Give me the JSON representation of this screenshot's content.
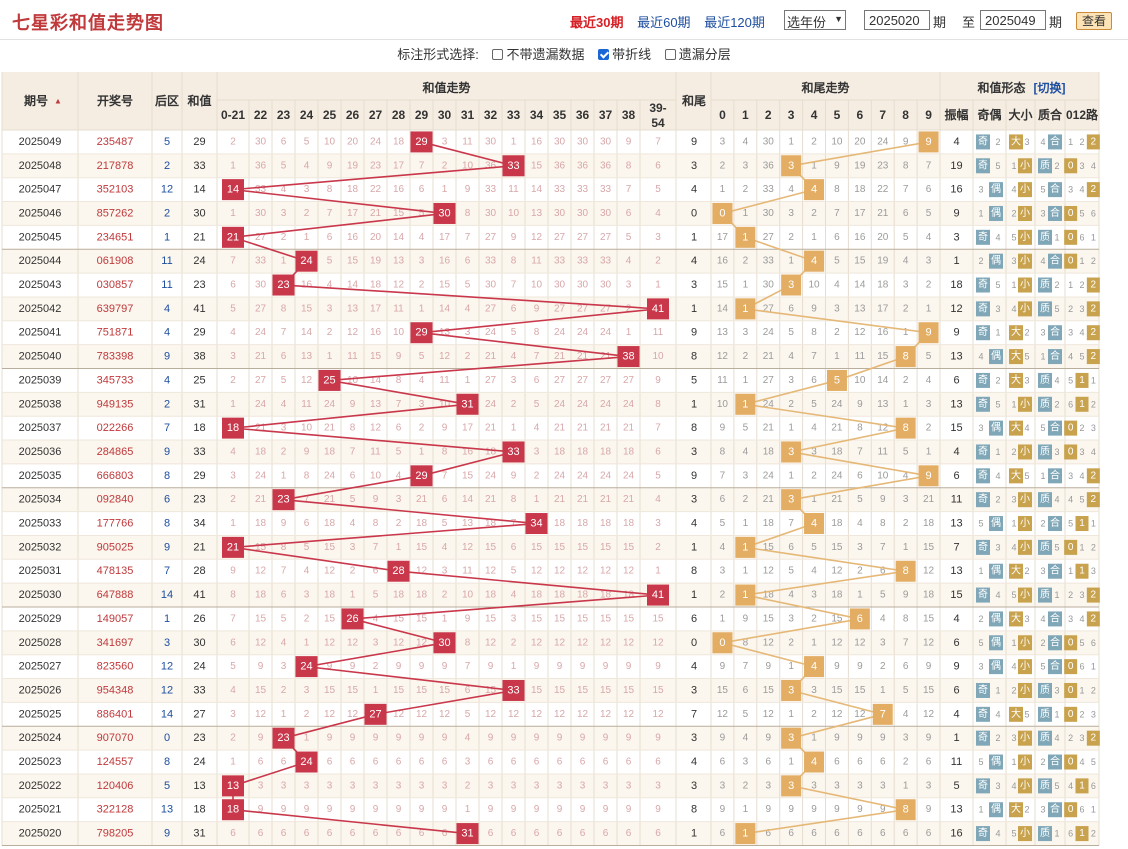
{
  "header": {
    "title": "七星彩和值走势图",
    "periods": [
      "最近30期",
      "最近60期",
      "最近120期"
    ],
    "active_period": 0,
    "year_select": "选年份",
    "from_value": "2025020",
    "from_label": "期",
    "to_label": "至",
    "to_value": "2025049",
    "to_suffix": "期",
    "query_button": "查看"
  },
  "options": {
    "label": "标注形式选择:",
    "items": [
      {
        "label": "不带遗漏数据",
        "checked": false
      },
      {
        "label": "带折线",
        "checked": true
      },
      {
        "label": "遗漏分层",
        "checked": false
      }
    ]
  },
  "table": {
    "headers": {
      "issue": "期号",
      "numbers": "开奖号",
      "back": "后区",
      "sum": "和值",
      "sum_trend": "和值走势",
      "sum_tail": "和尾",
      "tail_trend": "和尾走势",
      "form": "和值形态",
      "switch": "[切换]"
    },
    "sum_columns": [
      "0-21",
      "22",
      "23",
      "24",
      "25",
      "26",
      "27",
      "28",
      "29",
      "30",
      "31",
      "32",
      "33",
      "34",
      "35",
      "36",
      "37",
      "38",
      "39-54"
    ],
    "tail_columns": [
      "0",
      "1",
      "2",
      "3",
      "4",
      "5",
      "6",
      "7",
      "8",
      "9"
    ],
    "form_columns": [
      "振幅",
      "奇偶",
      "大小",
      "质合",
      "012路"
    ],
    "form_labels": {
      "odd": "奇",
      "even": "偶",
      "big": "大",
      "small": "小",
      "prime": "质",
      "composite": "合"
    },
    "colors": {
      "sum_mark": "#c9374b",
      "tail_mark": "#e3ad63",
      "sum_line": "#c9374b",
      "tail_line": "#e5b877",
      "head_bg": "#f5ede2",
      "row_alt": "#fbf6ee"
    },
    "rows": [
      {
        "issue": "2025049",
        "numbers": "235487",
        "back": "5",
        "sum": 29,
        "tail": 9,
        "amp": 4
      },
      {
        "issue": "2025048",
        "numbers": "217878",
        "back": "2",
        "sum": 33,
        "tail": 3,
        "amp": 19
      },
      {
        "issue": "2025047",
        "numbers": "352103",
        "back": "12",
        "sum": 14,
        "tail": 4,
        "amp": 16
      },
      {
        "issue": "2025046",
        "numbers": "857262",
        "back": "2",
        "sum": 30,
        "tail": 0,
        "amp": 9
      },
      {
        "issue": "2025045",
        "numbers": "234651",
        "back": "1",
        "sum": 21,
        "tail": 1,
        "amp": 3
      },
      {
        "issue": "2025044",
        "numbers": "061908",
        "back": "11",
        "sum": 24,
        "tail": 4,
        "amp": 1
      },
      {
        "issue": "2025043",
        "numbers": "030857",
        "back": "11",
        "sum": 23,
        "tail": 3,
        "amp": 18
      },
      {
        "issue": "2025042",
        "numbers": "639797",
        "back": "4",
        "sum": 41,
        "tail": 1,
        "amp": 12
      },
      {
        "issue": "2025041",
        "numbers": "751871",
        "back": "4",
        "sum": 29,
        "tail": 9,
        "amp": 9
      },
      {
        "issue": "2025040",
        "numbers": "783398",
        "back": "9",
        "sum": 38,
        "tail": 8,
        "amp": 13
      },
      {
        "issue": "2025039",
        "numbers": "345733",
        "back": "4",
        "sum": 25,
        "tail": 5,
        "amp": 6
      },
      {
        "issue": "2025038",
        "numbers": "949135",
        "back": "2",
        "sum": 31,
        "tail": 1,
        "amp": 13
      },
      {
        "issue": "2025037",
        "numbers": "022266",
        "back": "7",
        "sum": 18,
        "tail": 8,
        "amp": 15
      },
      {
        "issue": "2025036",
        "numbers": "284865",
        "back": "9",
        "sum": 33,
        "tail": 3,
        "amp": 4
      },
      {
        "issue": "2025035",
        "numbers": "666803",
        "back": "8",
        "sum": 29,
        "tail": 9,
        "amp": 6
      },
      {
        "issue": "2025034",
        "numbers": "092840",
        "back": "6",
        "sum": 23,
        "tail": 3,
        "amp": 11
      },
      {
        "issue": "2025033",
        "numbers": "177766",
        "back": "8",
        "sum": 34,
        "tail": 4,
        "amp": 13
      },
      {
        "issue": "2025032",
        "numbers": "905025",
        "back": "9",
        "sum": 21,
        "tail": 1,
        "amp": 7
      },
      {
        "issue": "2025031",
        "numbers": "478135",
        "back": "7",
        "sum": 28,
        "tail": 8,
        "amp": 13
      },
      {
        "issue": "2025030",
        "numbers": "647888",
        "back": "14",
        "sum": 41,
        "tail": 1,
        "amp": 15
      },
      {
        "issue": "2025029",
        "numbers": "149057",
        "back": "1",
        "sum": 26,
        "tail": 6,
        "amp": 4
      },
      {
        "issue": "2025028",
        "numbers": "341697",
        "back": "3",
        "sum": 30,
        "tail": 0,
        "amp": 6
      },
      {
        "issue": "2025027",
        "numbers": "823560",
        "back": "12",
        "sum": 24,
        "tail": 4,
        "amp": 9
      },
      {
        "issue": "2025026",
        "numbers": "954348",
        "back": "12",
        "sum": 33,
        "tail": 3,
        "amp": 6
      },
      {
        "issue": "2025025",
        "numbers": "886401",
        "back": "14",
        "sum": 27,
        "tail": 7,
        "amp": 4
      },
      {
        "issue": "2025024",
        "numbers": "907070",
        "back": "0",
        "sum": 23,
        "tail": 3,
        "amp": 1
      },
      {
        "issue": "2025023",
        "numbers": "124557",
        "back": "8",
        "sum": 24,
        "tail": 4,
        "amp": 11
      },
      {
        "issue": "2025022",
        "numbers": "120406",
        "back": "5",
        "sum": 13,
        "tail": 3,
        "amp": 5
      },
      {
        "issue": "2025021",
        "numbers": "322128",
        "back": "13",
        "sum": 18,
        "tail": 8,
        "amp": 13
      },
      {
        "issue": "2025020",
        "numbers": "798205",
        "back": "9",
        "sum": 31,
        "tail": 1,
        "amp": 16
      }
    ]
  },
  "chart_data": {
    "type": "line",
    "x": [
      "2025049",
      "2025048",
      "2025047",
      "2025046",
      "2025045",
      "2025044",
      "2025043",
      "2025042",
      "2025041",
      "2025040",
      "2025039",
      "2025038",
      "2025037",
      "2025036",
      "2025035",
      "2025034",
      "2025033",
      "2025032",
      "2025031",
      "2025030",
      "2025029",
      "2025028",
      "2025027",
      "2025026",
      "2025025",
      "2025024",
      "2025023",
      "2025022",
      "2025021",
      "2025020"
    ],
    "series": [
      {
        "name": "和值走势",
        "values": [
          29,
          33,
          14,
          30,
          21,
          24,
          23,
          41,
          29,
          38,
          25,
          31,
          18,
          33,
          29,
          23,
          34,
          21,
          28,
          41,
          26,
          30,
          24,
          33,
          27,
          23,
          24,
          13,
          18,
          31
        ]
      },
      {
        "name": "和尾走势",
        "values": [
          9,
          3,
          4,
          0,
          1,
          4,
          3,
          1,
          9,
          8,
          5,
          1,
          8,
          3,
          9,
          3,
          4,
          1,
          8,
          1,
          6,
          0,
          4,
          3,
          7,
          3,
          4,
          3,
          8,
          1
        ]
      }
    ],
    "xlabel": "期号",
    "ylabel": "和值"
  }
}
